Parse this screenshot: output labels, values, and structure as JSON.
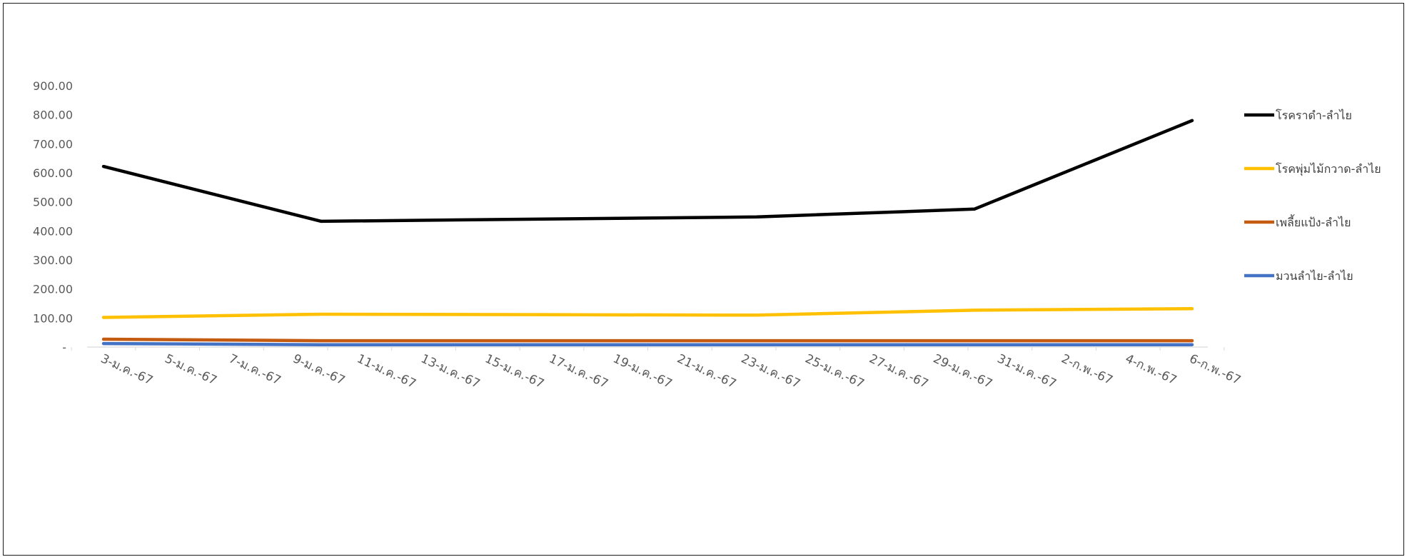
{
  "chart_data": {
    "type": "line",
    "title": "",
    "xlabel": "",
    "ylabel": "",
    "ylim": [
      0,
      900
    ],
    "y_ticks": [
      "-",
      "100.00",
      "200.00",
      "300.00",
      "400.00",
      "500.00",
      "600.00",
      "700.00",
      "800.00",
      "900.00"
    ],
    "x_tick_labels": [
      "3-ม.ค.-67",
      "5-ม.ค.-67",
      "7-ม.ค.-67",
      "9-ม.ค.-67",
      "11-ม.ค.-67",
      "13-ม.ค.-67",
      "15-ม.ค.-67",
      "17-ม.ค.-67",
      "19-ม.ค.-67",
      "21-ม.ค.-67",
      "23-ม.ค.-67",
      "25-ม.ค.-67",
      "27-ม.ค.-67",
      "29-ม.ค.-67",
      "31-ม.ค.-67",
      "2-ก.พ.-67",
      "4-ก.พ.-67",
      "6-ก.พ.-67"
    ],
    "x": [
      "2024-01-03",
      "2024-01-10",
      "2024-01-24",
      "2024-01-31",
      "2024-02-07"
    ],
    "series": [
      {
        "name": "โรคราดำ-ลำไย",
        "color": "#000000",
        "values": [
          622,
          433,
          448,
          475,
          780
        ]
      },
      {
        "name": "โรคพุ่มไม้กวาด-ลำไย",
        "color": "#FFC000",
        "values": [
          102,
          113,
          110,
          127,
          132
        ]
      },
      {
        "name": "เพลี้ยแป้ง-ลำไย",
        "color": "#C55A11",
        "values": [
          27,
          22,
          22,
          22,
          22
        ]
      },
      {
        "name": "มวนลำไย-ลำไย",
        "color": "#4472C4",
        "values": [
          12,
          8,
          8,
          8,
          8
        ]
      }
    ],
    "grid": false,
    "legend_position": "right"
  }
}
